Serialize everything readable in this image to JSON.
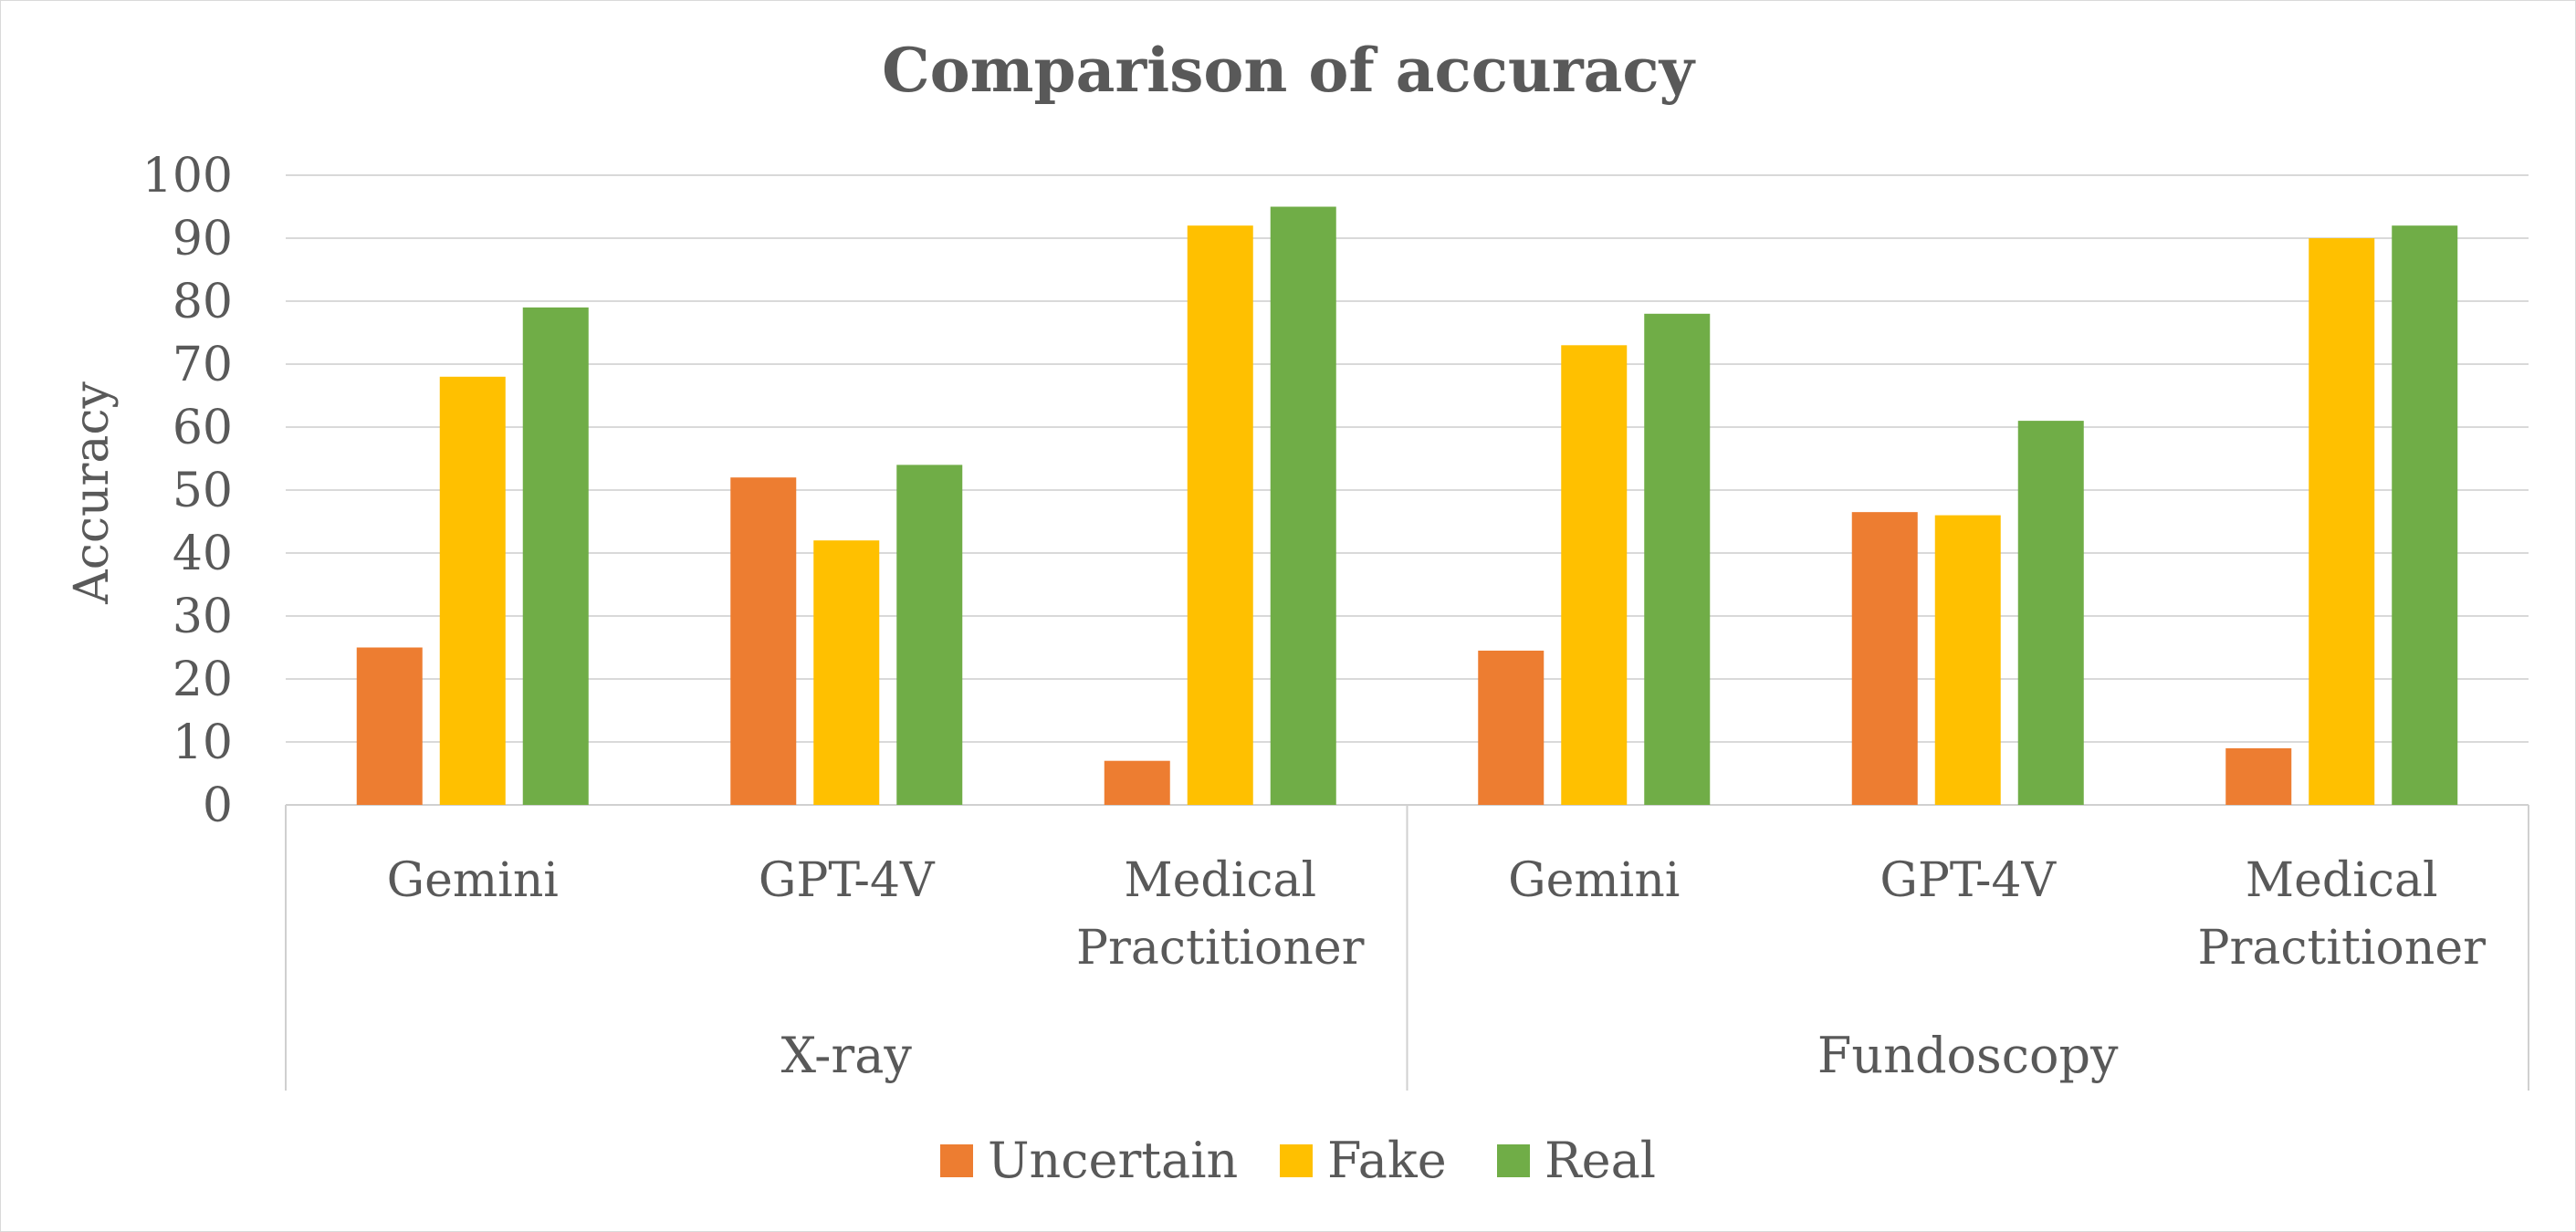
{
  "chart_data": {
    "type": "bar",
    "title": "Comparison of accuracy",
    "xlabel": "",
    "ylabel": "Accuracy",
    "ylim": [
      0,
      100
    ],
    "yticks": [
      0,
      10,
      20,
      30,
      40,
      50,
      60,
      70,
      80,
      90,
      100
    ],
    "grid": true,
    "legend_position": "bottom",
    "groups": [
      {
        "label": "X-ray",
        "categories": [
          "Gemini",
          "GPT-4V",
          "Medical Practitioner"
        ]
      },
      {
        "label": "Fundoscopy",
        "categories": [
          "Gemini",
          "GPT-4V",
          "Medical Practitioner"
        ]
      }
    ],
    "categories": [
      "Gemini",
      "GPT-4V",
      "Medical Practitioner",
      "Gemini",
      "GPT-4V",
      "Medical Practitioner"
    ],
    "series": [
      {
        "name": "Uncertain",
        "color": "#ED7D31",
        "values": [
          25,
          52,
          7,
          24.5,
          46.5,
          9
        ]
      },
      {
        "name": "Fake",
        "color": "#FFC000",
        "values": [
          68,
          42,
          92,
          73,
          46,
          90
        ]
      },
      {
        "name": "Real",
        "color": "#70AD47",
        "values": [
          79,
          54,
          95,
          78,
          61,
          92
        ]
      }
    ]
  }
}
